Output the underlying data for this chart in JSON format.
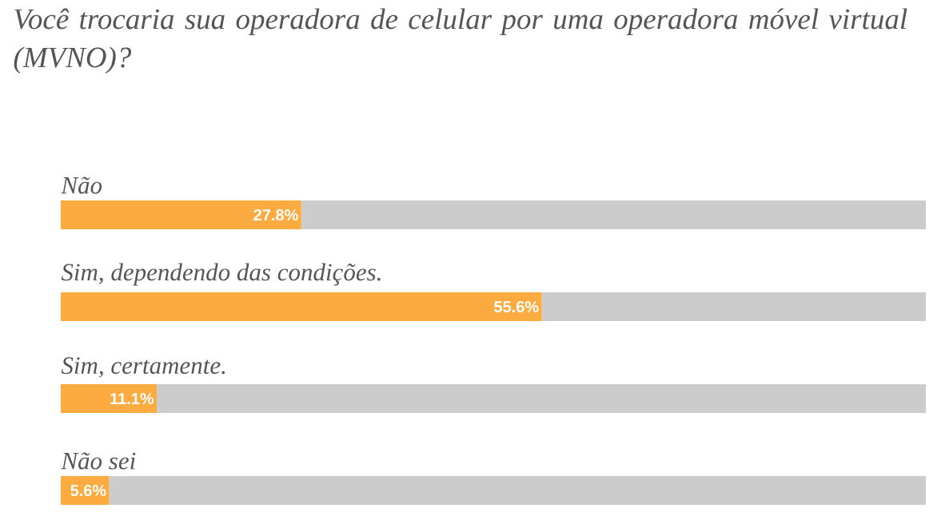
{
  "chart_data": {
    "type": "bar",
    "orientation": "horizontal",
    "stacked": true,
    "title": "Você trocaria sua operadora de celular por uma operadora móvel virtual (MVNO)?",
    "categories": [
      "Não",
      "Sim, dependendo das condições.",
      "Sim, certamente.",
      "Não sei"
    ],
    "series": [
      {
        "color": "#fbab40",
        "values": [
          27.8,
          55.6,
          11.1,
          5.6
        ],
        "value_labels": [
          "27.8%",
          "55.6%",
          "11.1%",
          "5.6%"
        ]
      },
      {
        "color": "#cccccc",
        "values": [
          72.2,
          44.4,
          88.9,
          94.4
        ]
      }
    ]
  }
}
